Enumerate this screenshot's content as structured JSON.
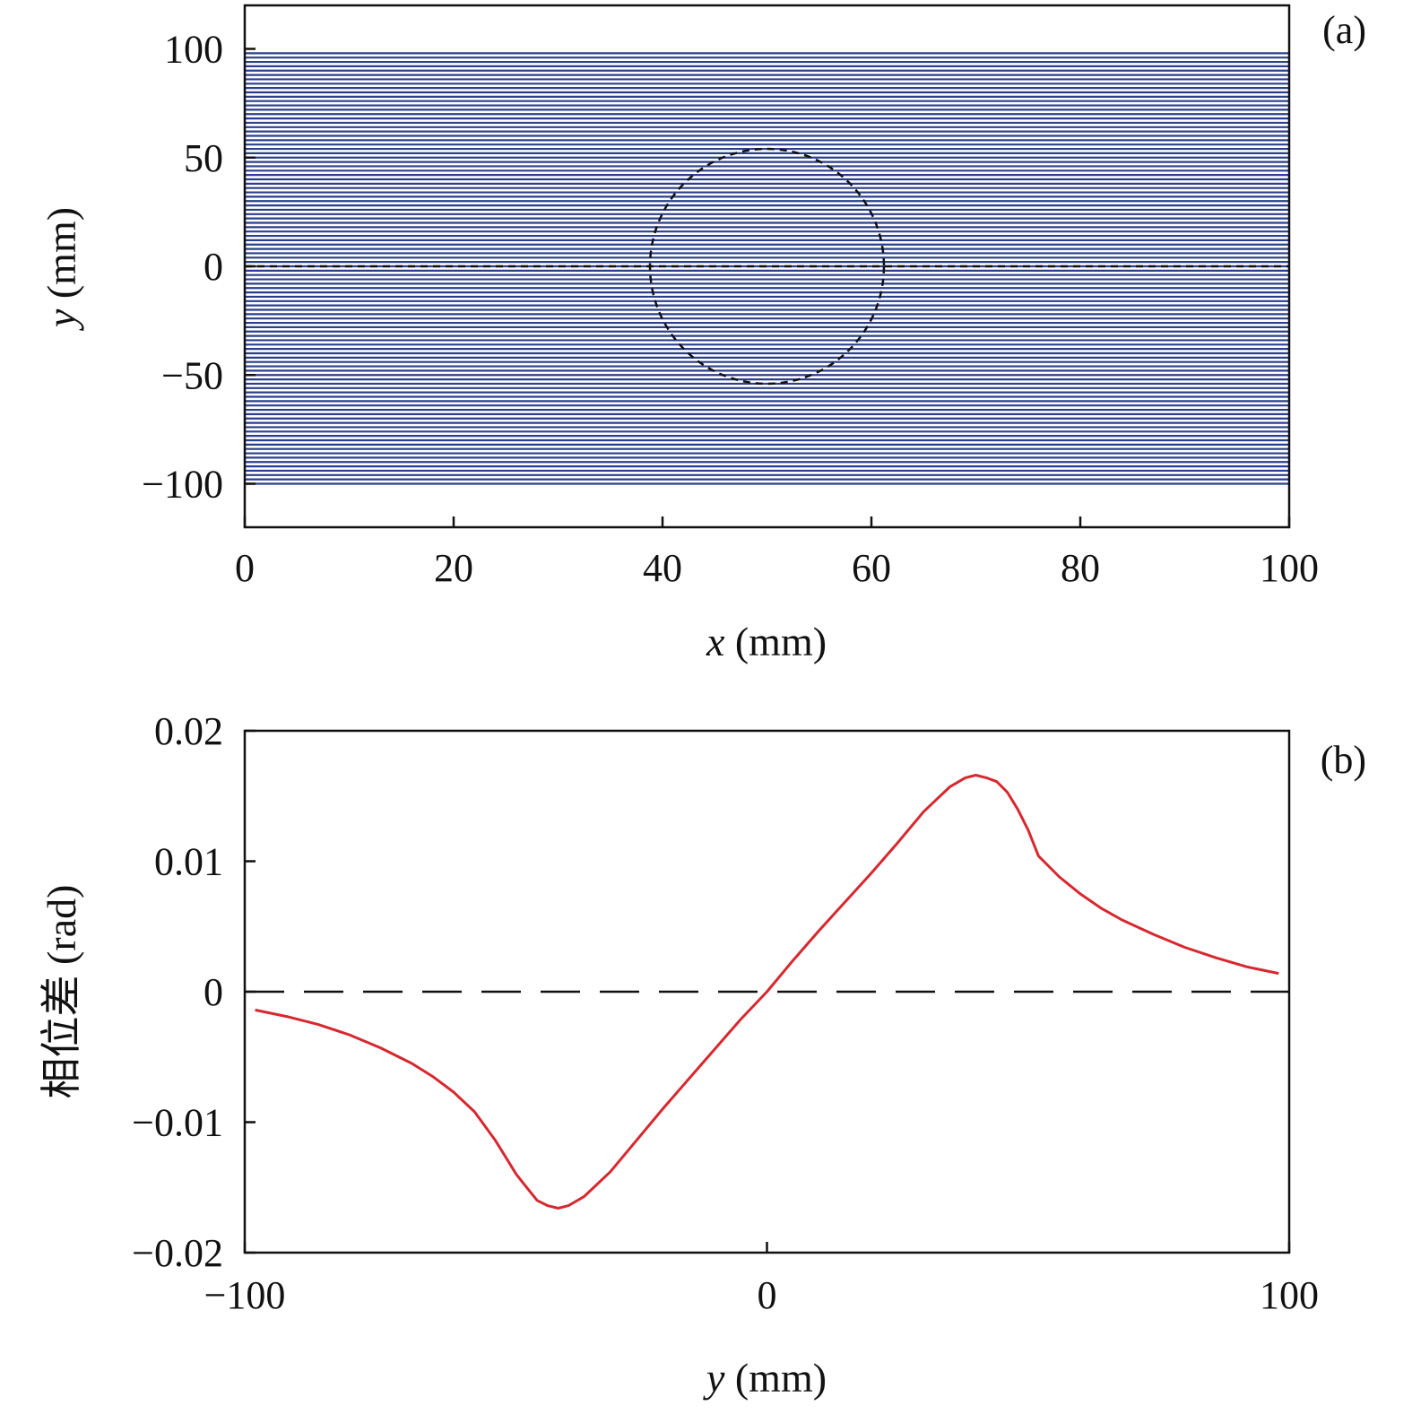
{
  "chart_data": [
    {
      "type": "line",
      "panel_label": "(a)",
      "xlabel_var": "x",
      "xlabel_unit": " (mm)",
      "ylabel_var": "y",
      "ylabel_unit": " (mm)",
      "xlim": [
        0,
        100
      ],
      "ylim": [
        -120,
        120
      ],
      "xticks": [
        "0",
        "20",
        "40",
        "60",
        "80",
        "100"
      ],
      "xtick_values": [
        0,
        20,
        40,
        60,
        80,
        100
      ],
      "yticks": [
        "100",
        "50",
        "0",
        "−50",
        "−100"
      ],
      "ytick_values": [
        100,
        50,
        0,
        -50,
        -100
      ],
      "lines": {
        "y_from": -100,
        "y_to": 98,
        "count": 100,
        "x_range": [
          0,
          100
        ],
        "color": "#2b3f8c"
      },
      "dashed_circle": {
        "center": [
          50,
          0
        ],
        "radius": 11.2,
        "y_extent": 54
      },
      "dashed_axis_line": {
        "y": 0,
        "x_range": [
          0,
          100
        ]
      },
      "grid": false
    },
    {
      "type": "line",
      "panel_label": "(b)",
      "xlabel_var": "y",
      "xlabel_unit": " (mm)",
      "ylabel_cjk": "相位差",
      "ylabel_unit": " (rad)",
      "xlim": [
        -100,
        100
      ],
      "ylim": [
        -0.02,
        0.02
      ],
      "xticks": [
        "−100",
        "0",
        "100"
      ],
      "xtick_values": [
        -100,
        0,
        100
      ],
      "yticks": [
        "0.02",
        "0.01",
        "0",
        "−0.01",
        "−0.02"
      ],
      "ytick_values": [
        0.02,
        0.01,
        0,
        -0.01,
        -0.02
      ],
      "reference_line": {
        "y": 0,
        "style": "dashed",
        "color": "#111111"
      },
      "series": [
        {
          "color": "#d7282f",
          "x": [
            -98,
            -92,
            -86,
            -80,
            -74,
            -68,
            -64,
            -60,
            -56,
            -52,
            -50,
            -48,
            -46,
            -44,
            -42,
            -40,
            -38,
            -35,
            -30,
            -25,
            -20,
            -15,
            -10,
            -5,
            0,
            5,
            10,
            15,
            20,
            25,
            30,
            35,
            38,
            40,
            42,
            44,
            46,
            48,
            50,
            52,
            56,
            60,
            64,
            68,
            74,
            80,
            86,
            92,
            98
          ],
          "y": [
            -0.0014,
            -0.0019,
            -0.0025,
            -0.0033,
            -0.0043,
            -0.0055,
            -0.0065,
            -0.0077,
            -0.0092,
            -0.0114,
            -0.0127,
            -0.014,
            -0.015,
            -0.016,
            -0.0164,
            -0.0166,
            -0.0164,
            -0.0157,
            -0.0138,
            -0.0114,
            -0.009,
            -0.0067,
            -0.0044,
            -0.0021,
            0.0,
            0.0024,
            0.0047,
            0.0069,
            0.0091,
            0.0114,
            0.0138,
            0.0157,
            0.0164,
            0.0166,
            0.0164,
            0.0161,
            0.0153,
            0.014,
            0.0124,
            0.0104,
            0.0088,
            0.0075,
            0.0064,
            0.0055,
            0.0044,
            0.0034,
            0.0026,
            0.0019,
            0.0014
          ]
        }
      ],
      "grid": false
    }
  ]
}
